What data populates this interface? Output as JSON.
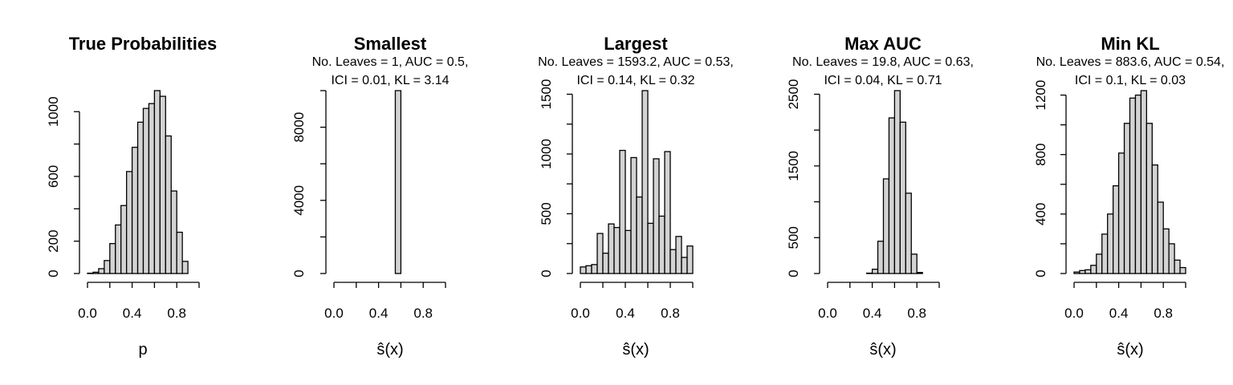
{
  "colors": {
    "bar_fill": "#d3d3d3",
    "bar_stroke": "#000000",
    "background": "#ffffff"
  },
  "chart_data": [
    {
      "type": "bar",
      "title": "True Probabilities",
      "subtitle_lines": [],
      "xlabel": "p",
      "ylabel": "",
      "bin_width": 0.05,
      "x_range": [
        0,
        1
      ],
      "xlim": [
        0,
        1
      ],
      "ylim": [
        0,
        1130
      ],
      "x_ticks": [
        0.0,
        0.2,
        0.4,
        0.6,
        0.8,
        1.0
      ],
      "x_tick_labels": [
        "0.0",
        "",
        "0.4",
        "",
        "0.8",
        ""
      ],
      "y_ticks": [
        0,
        200,
        400,
        600,
        800,
        1000
      ],
      "y_tick_labels": [
        "0",
        "200",
        "",
        "600",
        "",
        "1000"
      ],
      "values": [
        2,
        8,
        30,
        80,
        185,
        300,
        420,
        630,
        780,
        935,
        1020,
        1050,
        1130,
        1095,
        850,
        510,
        255,
        75,
        0,
        0
      ]
    },
    {
      "type": "bar",
      "title": "Smallest",
      "subtitle_lines": [
        "No. Leaves = 1, AUC = 0.5,",
        "ICI = 0.01, KL = 3.14"
      ],
      "xlabel": "ŝ(x)",
      "ylabel": "",
      "bin_width": 0.05,
      "x_range": [
        0,
        1
      ],
      "xlim": [
        0,
        1
      ],
      "ylim": [
        0,
        10000
      ],
      "x_ticks": [
        0.0,
        0.2,
        0.4,
        0.6,
        0.8,
        1.0
      ],
      "x_tick_labels": [
        "0.0",
        "",
        "0.4",
        "",
        "0.8",
        ""
      ],
      "y_ticks": [
        0,
        2000,
        4000,
        6000,
        8000,
        10000
      ],
      "y_tick_labels": [
        "0",
        "",
        "4000",
        "",
        "8000",
        ""
      ],
      "values": [
        0,
        0,
        0,
        0,
        0,
        0,
        0,
        0,
        0,
        0,
        0,
        10000,
        0,
        0,
        0,
        0,
        0,
        0,
        0,
        0
      ]
    },
    {
      "type": "bar",
      "title": "Largest",
      "subtitle_lines": [
        "No. Leaves = 1593.2, AUC = 0.53,",
        "ICI = 0.14, KL = 0.32"
      ],
      "xlabel": "ŝ(x)",
      "ylabel": "",
      "bin_width": 0.05,
      "x_range": [
        0,
        1
      ],
      "xlim": [
        0,
        1
      ],
      "ylim": [
        0,
        1530
      ],
      "x_ticks": [
        0.0,
        0.2,
        0.4,
        0.6,
        0.8,
        1.0
      ],
      "x_tick_labels": [
        "0.0",
        "",
        "0.4",
        "",
        "0.8",
        ""
      ],
      "y_ticks": [
        0,
        250,
        500,
        750,
        1000,
        1250,
        1500
      ],
      "y_tick_labels": [
        "0",
        "",
        "500",
        "",
        "1000",
        "",
        "1500"
      ],
      "values": [
        55,
        65,
        75,
        335,
        170,
        415,
        385,
        1030,
        360,
        970,
        640,
        1530,
        420,
        960,
        480,
        1020,
        200,
        310,
        135,
        230
      ]
    },
    {
      "type": "bar",
      "title": "Max AUC",
      "subtitle_lines": [
        "No. Leaves = 19.8, AUC = 0.63,",
        "ICI = 0.04, KL = 0.71"
      ],
      "xlabel": "ŝ(x)",
      "ylabel": "",
      "bin_width": 0.05,
      "x_range": [
        0,
        1
      ],
      "xlim": [
        0,
        1
      ],
      "ylim": [
        0,
        2550
      ],
      "x_ticks": [
        0.0,
        0.2,
        0.4,
        0.6,
        0.8,
        1.0
      ],
      "x_tick_labels": [
        "0.0",
        "",
        "0.4",
        "",
        "0.8",
        ""
      ],
      "y_ticks": [
        0,
        500,
        1000,
        1500,
        2000,
        2500
      ],
      "y_tick_labels": [
        "0",
        "500",
        "",
        "1500",
        "",
        "2500"
      ],
      "values": [
        0,
        0,
        0,
        0,
        0,
        0,
        0,
        5,
        60,
        450,
        1320,
        2170,
        2550,
        2110,
        1120,
        270,
        15,
        0,
        0,
        0
      ]
    },
    {
      "type": "bar",
      "title": "Min KL",
      "subtitle_lines": [
        "No. Leaves = 883.6, AUC = 0.54,",
        "ICI = 0.1, KL = 0.03"
      ],
      "xlabel": "ŝ(x)",
      "ylabel": "",
      "bin_width": 0.05,
      "x_range": [
        0,
        1
      ],
      "xlim": [
        0,
        1
      ],
      "ylim": [
        0,
        1230
      ],
      "x_ticks": [
        0.0,
        0.2,
        0.4,
        0.6,
        0.8,
        1.0
      ],
      "x_tick_labels": [
        "0.0",
        "",
        "0.4",
        "",
        "0.8",
        ""
      ],
      "y_ticks": [
        0,
        200,
        400,
        600,
        800,
        1000,
        1200
      ],
      "y_tick_labels": [
        "0",
        "",
        "400",
        "",
        "800",
        "",
        "1200"
      ],
      "values": [
        10,
        20,
        25,
        55,
        130,
        265,
        400,
        590,
        810,
        1010,
        1180,
        1200,
        1230,
        1010,
        730,
        480,
        300,
        200,
        90,
        40
      ]
    }
  ]
}
